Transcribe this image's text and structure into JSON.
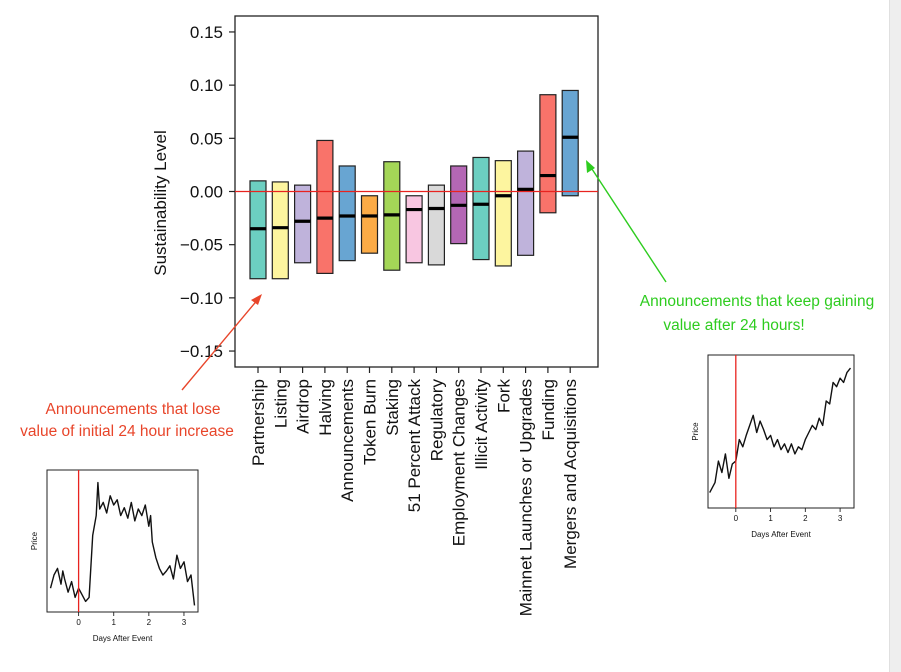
{
  "chart_data": [
    {
      "type": "box",
      "ylabel": "Sustainability Level",
      "ylim": [
        -0.165,
        0.165
      ],
      "yticks": [
        0.15,
        0.1,
        0.05,
        0.0,
        -0.05,
        -0.1,
        -0.15
      ],
      "ytick_labels": [
        "0.15",
        "0.10",
        "0.05",
        "0.00",
        "−0.05",
        "−0.10",
        "−0.15"
      ],
      "reference_line": 0.0,
      "reference_line_color": "#e8231f",
      "categories": [
        "Partnership",
        "Listing",
        "Airdrop",
        "Halving",
        "Announcements",
        "Token Burn",
        "Staking",
        "51 Percent Attack",
        "Regulatory",
        "Employment Changes",
        "Illicit Activity",
        "Fork",
        "Mainnet Launches or Upgrades",
        "Funding",
        "Mergers and Acquisitions"
      ],
      "boxes": [
        {
          "low": -0.082,
          "high": 0.01,
          "median": -0.035,
          "color": "#6ccfc1"
        },
        {
          "low": -0.082,
          "high": 0.009,
          "median": -0.034,
          "color": "#fdf59f"
        },
        {
          "low": -0.067,
          "high": 0.006,
          "median": -0.028,
          "color": "#bfb3db"
        },
        {
          "low": -0.077,
          "high": 0.048,
          "median": -0.025,
          "color": "#f9736a"
        },
        {
          "low": -0.065,
          "high": 0.024,
          "median": -0.023,
          "color": "#68a5d2"
        },
        {
          "low": -0.058,
          "high": -0.004,
          "median": -0.023,
          "color": "#fbab46"
        },
        {
          "low": -0.074,
          "high": 0.028,
          "median": -0.022,
          "color": "#a4d657"
        },
        {
          "low": -0.067,
          "high": -0.004,
          "median": -0.017,
          "color": "#f8c6e1"
        },
        {
          "low": -0.069,
          "high": 0.006,
          "median": -0.016,
          "color": "#d9d9d9"
        },
        {
          "low": -0.049,
          "high": 0.024,
          "median": -0.013,
          "color": "#b467b5"
        },
        {
          "low": -0.064,
          "high": 0.032,
          "median": -0.012,
          "color": "#6ccfc1"
        },
        {
          "low": -0.07,
          "high": 0.029,
          "median": -0.004,
          "color": "#fdf59f"
        },
        {
          "low": -0.06,
          "high": 0.038,
          "median": 0.002,
          "color": "#bfb3db"
        },
        {
          "low": -0.02,
          "high": 0.091,
          "median": 0.015,
          "color": "#f9736a"
        },
        {
          "low": -0.004,
          "high": 0.095,
          "median": 0.051,
          "color": "#68a5d2"
        }
      ]
    },
    {
      "type": "line",
      "position": "bottom-left inset",
      "xlabel": "Days After Event",
      "ylabel": "Price",
      "xlim": [
        -0.9,
        3.4
      ],
      "xticks": [
        0,
        1,
        2,
        3
      ],
      "event_line_x": 0,
      "event_line_color": "#e8231f",
      "x": [
        -0.8,
        -0.7,
        -0.6,
        -0.5,
        -0.45,
        -0.4,
        -0.3,
        -0.2,
        -0.1,
        0.0,
        0.1,
        0.2,
        0.3,
        0.4,
        0.5,
        0.55,
        0.6,
        0.7,
        0.8,
        0.9,
        1.0,
        1.1,
        1.2,
        1.3,
        1.4,
        1.5,
        1.6,
        1.7,
        1.8,
        1.9,
        2.0,
        2.05,
        2.1,
        2.2,
        2.3,
        2.4,
        2.5,
        2.6,
        2.7,
        2.8,
        2.9,
        3.0,
        3.1,
        3.2,
        3.3
      ],
      "y": [
        0.15,
        0.25,
        0.3,
        0.18,
        0.28,
        0.22,
        0.12,
        0.2,
        0.08,
        0.15,
        0.1,
        0.05,
        0.08,
        0.55,
        0.7,
        0.95,
        0.75,
        0.8,
        0.72,
        0.85,
        0.78,
        0.82,
        0.7,
        0.76,
        0.68,
        0.8,
        0.66,
        0.75,
        0.7,
        0.78,
        0.62,
        0.7,
        0.5,
        0.38,
        0.3,
        0.25,
        0.28,
        0.32,
        0.22,
        0.4,
        0.3,
        0.35,
        0.2,
        0.25,
        0.02
      ],
      "ylim": [
        0,
        1
      ]
    },
    {
      "type": "line",
      "position": "bottom-right inset",
      "xlabel": "Days After Event",
      "ylabel": "Price",
      "xlim": [
        -0.8,
        3.4
      ],
      "xticks": [
        0,
        1,
        2,
        3
      ],
      "event_line_x": 0,
      "event_line_color": "#e8231f",
      "x": [
        -0.75,
        -0.6,
        -0.5,
        -0.4,
        -0.3,
        -0.2,
        -0.1,
        0.0,
        0.1,
        0.2,
        0.3,
        0.4,
        0.5,
        0.6,
        0.7,
        0.8,
        0.9,
        1.0,
        1.1,
        1.2,
        1.3,
        1.4,
        1.5,
        1.6,
        1.7,
        1.8,
        1.9,
        2.0,
        2.1,
        2.2,
        2.3,
        2.4,
        2.5,
        2.6,
        2.7,
        2.8,
        2.9,
        3.0,
        3.1,
        3.2,
        3.3
      ],
      "y": [
        0.08,
        0.15,
        0.3,
        0.22,
        0.35,
        0.18,
        0.28,
        0.3,
        0.45,
        0.4,
        0.48,
        0.55,
        0.62,
        0.5,
        0.58,
        0.52,
        0.45,
        0.48,
        0.4,
        0.45,
        0.38,
        0.42,
        0.36,
        0.42,
        0.35,
        0.4,
        0.38,
        0.45,
        0.5,
        0.55,
        0.52,
        0.6,
        0.55,
        0.72,
        0.7,
        0.85,
        0.82,
        0.88,
        0.85,
        0.92,
        0.95
      ],
      "ylim": [
        0,
        1
      ]
    }
  ],
  "annotations": {
    "lose_text": [
      "Announcements that lose",
      "value of initial 24 hour increase"
    ],
    "lose_color": "#e8452a",
    "gain_text": [
      "Announcements that keep gaining",
      "value after 24 hours!"
    ],
    "gain_color": "#2ecc1f"
  }
}
